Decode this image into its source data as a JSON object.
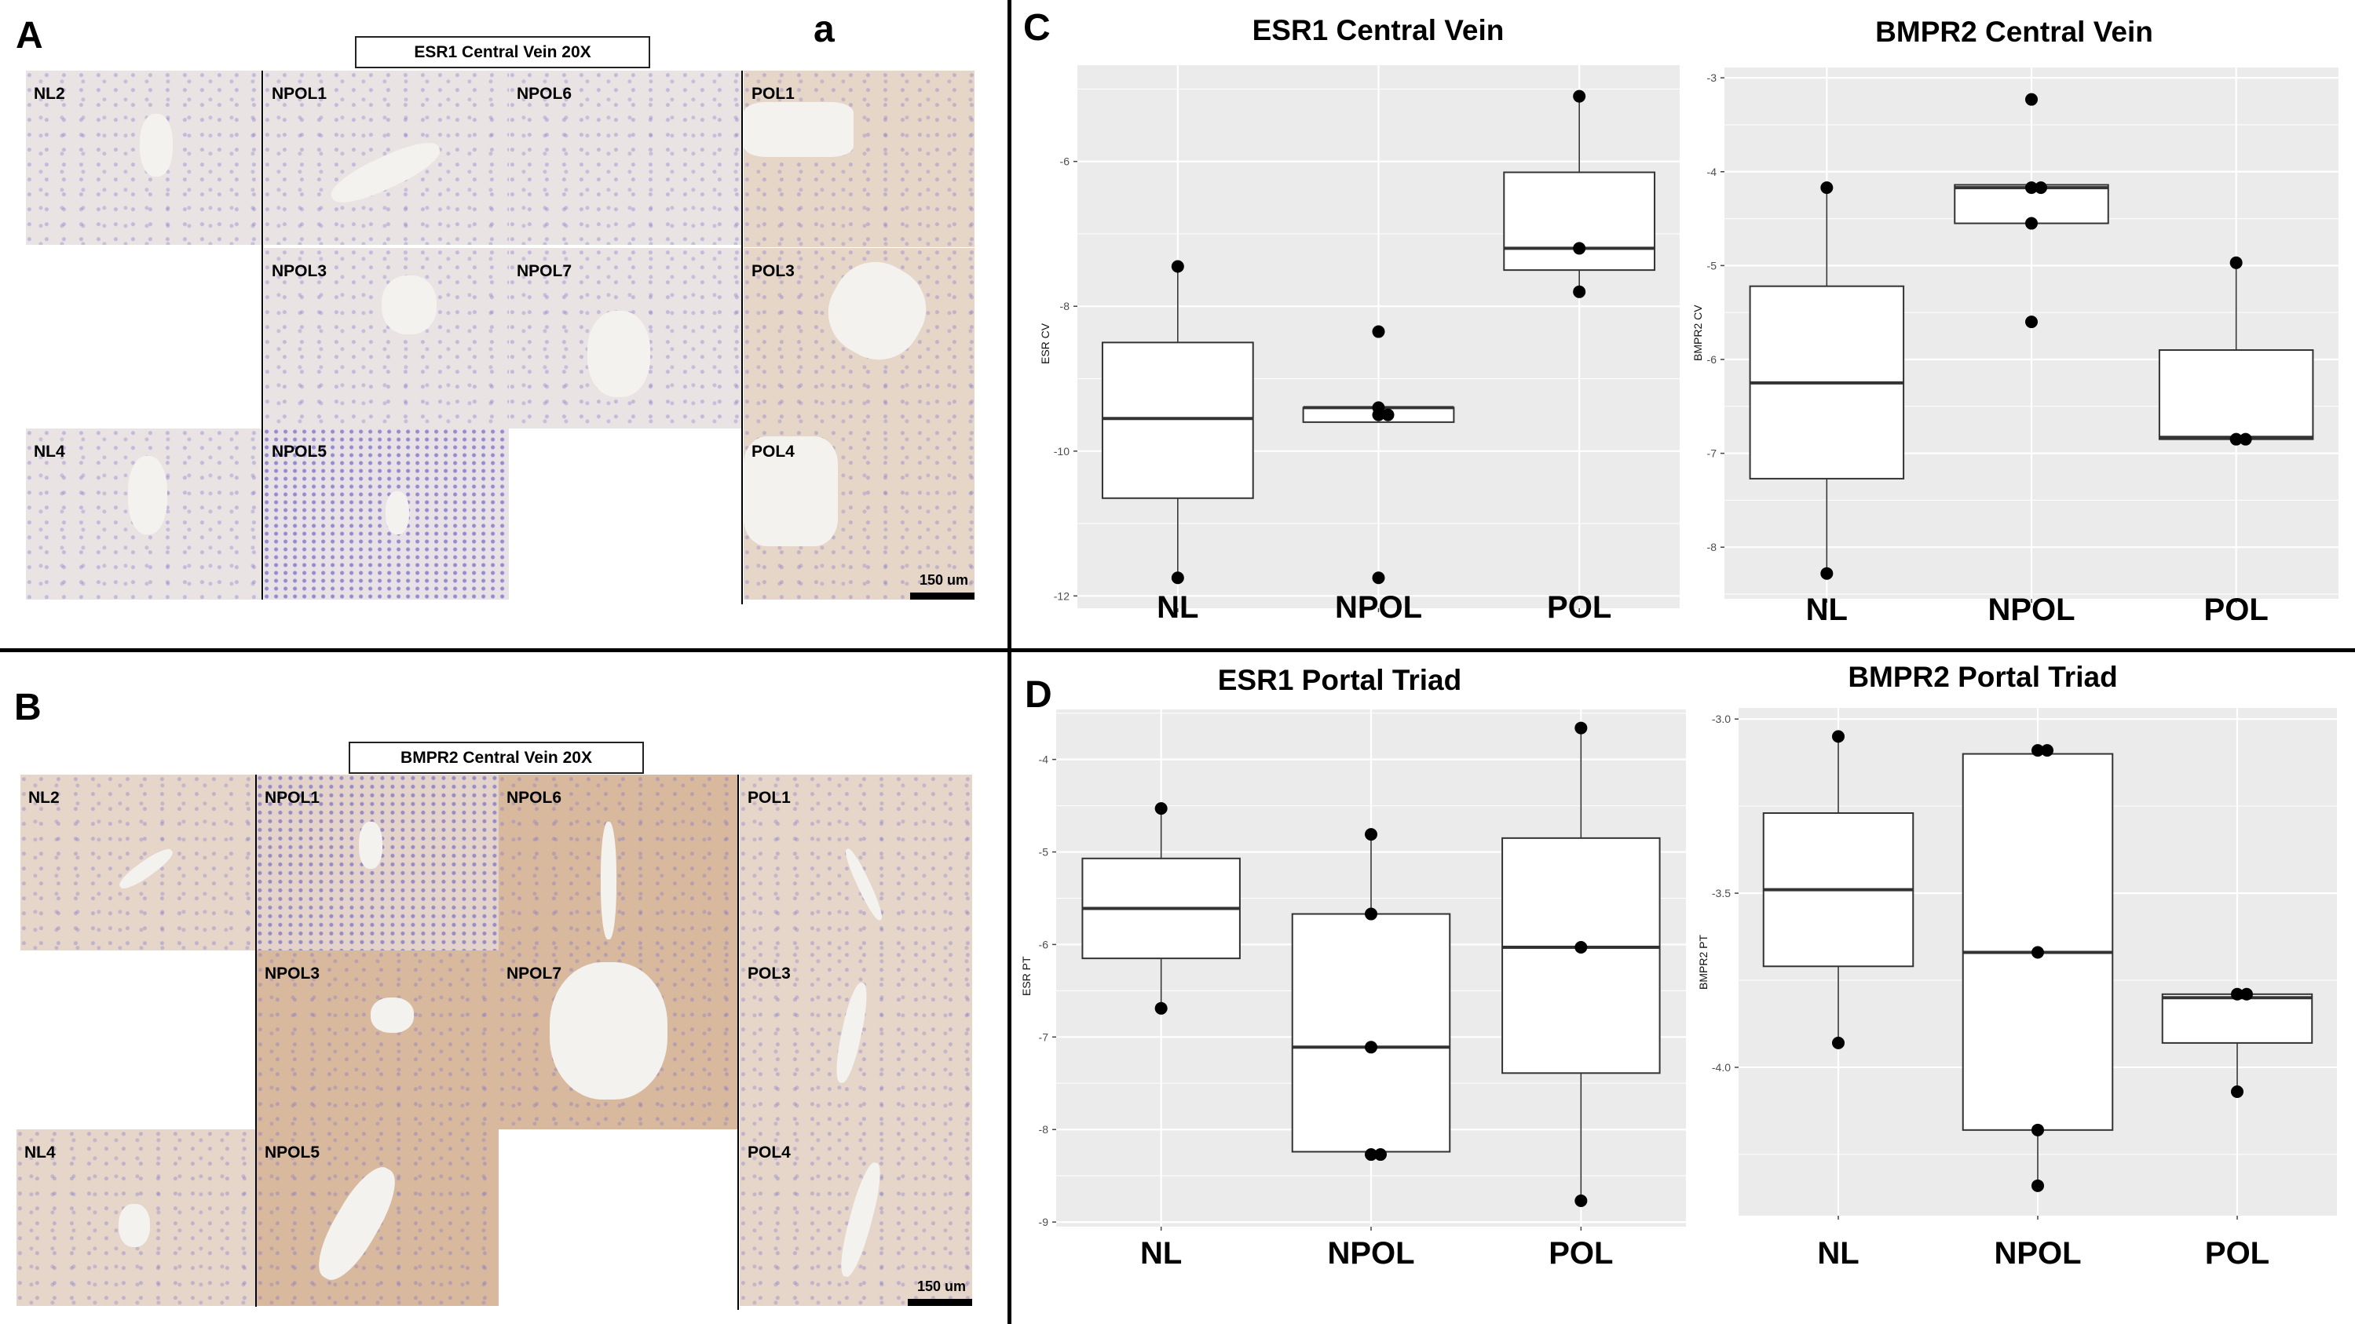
{
  "panels": {
    "A": {
      "letter": "A",
      "sub_letter": "a",
      "title": "ESR1 Central Vein 20X",
      "tiles": [
        {
          "label": "NL2"
        },
        {
          "label": "NPOL1"
        },
        {
          "label": "NPOL6"
        },
        {
          "label": "POL1"
        },
        {
          "label": "NPOL3"
        },
        {
          "label": "NPOL7"
        },
        {
          "label": "POL3"
        },
        {
          "label": "NL4"
        },
        {
          "label": "NPOL5"
        },
        {
          "label": "POL4"
        }
      ],
      "scale_bar": "150 um"
    },
    "B": {
      "letter": "B",
      "title": "BMPR2 Central Vein 20X",
      "tiles": [
        {
          "label": "NL2"
        },
        {
          "label": "NPOL1"
        },
        {
          "label": "NPOL6"
        },
        {
          "label": "POL1"
        },
        {
          "label": "NPOL3"
        },
        {
          "label": "NPOL7"
        },
        {
          "label": "POL3"
        },
        {
          "label": "NL4"
        },
        {
          "label": "NPOL5"
        },
        {
          "label": "POL4"
        }
      ],
      "scale_bar": "150 um"
    },
    "C": {
      "letter": "C"
    },
    "D": {
      "letter": "D"
    }
  },
  "colors": {
    "plot_bg": "#ebebeb",
    "grid": "#ffffff",
    "box_fill": "#ffffff",
    "box_line": "#333333",
    "point": "#000000"
  },
  "chart_data": [
    {
      "id": "esr1_cv",
      "type": "box",
      "title": "ESR1 Central Vein",
      "xlabel": "",
      "ylabel": "ESR CV",
      "categories": [
        "NL",
        "NPOL",
        "POL"
      ],
      "ylim": [
        -12.17,
        -4.67
      ],
      "yticks": [
        -12,
        -10,
        -8,
        -6
      ],
      "grid": true,
      "boxes": [
        {
          "q1": -10.65,
          "median": -9.55,
          "q3": -8.5,
          "whisker_low": -11.75,
          "whisker_high": -7.45
        },
        {
          "q1": -9.6,
          "median": -9.4,
          "q3": -9.4,
          "whisker_low": -9.6,
          "whisker_high": -9.4
        },
        {
          "q1": -7.5,
          "median": -7.2,
          "q3": -6.15,
          "whisker_low": -7.8,
          "whisker_high": -5.1
        }
      ],
      "points": [
        [
          -7.45,
          -11.75
        ],
        [
          -8.35,
          -9.4,
          -9.5,
          -9.5,
          -11.75
        ],
        [
          -5.1,
          -7.2,
          -7.8
        ]
      ]
    },
    {
      "id": "bmpr2_cv",
      "type": "box",
      "title": "BMPR2 Central Vein",
      "xlabel": "",
      "ylabel": "BMPR2 CV",
      "categories": [
        "NL",
        "NPOL",
        "POL"
      ],
      "ylim": [
        -8.55,
        -2.89
      ],
      "yticks": [
        -8,
        -7,
        -6,
        -5,
        -4,
        -3
      ],
      "grid": true,
      "boxes": [
        {
          "q1": -7.27,
          "median": -6.25,
          "q3": -5.22,
          "whisker_low": -8.28,
          "whisker_high": -4.17
        },
        {
          "q1": -4.55,
          "median": -4.17,
          "q3": -4.14,
          "whisker_low": -4.55,
          "whisker_high": -4.14
        },
        {
          "q1": -6.85,
          "median": -6.83,
          "q3": -5.9,
          "whisker_low": -6.85,
          "whisker_high": -4.97
        }
      ],
      "points": [
        [
          -4.17,
          -8.28
        ],
        [
          -3.23,
          -4.17,
          -4.17,
          -4.55,
          -5.6
        ],
        [
          -4.97,
          -6.85,
          -6.85
        ]
      ]
    },
    {
      "id": "esr1_pt",
      "type": "box",
      "title": "ESR1 Portal Triad",
      "xlabel": "",
      "ylabel": "ESR PT",
      "categories": [
        "NL",
        "NPOL",
        "POL"
      ],
      "ylim": [
        -9.05,
        -3.46
      ],
      "yticks": [
        -9,
        -8,
        -7,
        -6,
        -5,
        -4
      ],
      "grid": true,
      "boxes": [
        {
          "q1": -6.15,
          "median": -5.61,
          "q3": -5.07,
          "whisker_low": -6.69,
          "whisker_high": -4.53
        },
        {
          "q1": -8.24,
          "median": -7.11,
          "q3": -5.67,
          "whisker_low": -8.27,
          "whisker_high": -4.81
        },
        {
          "q1": -7.39,
          "median": -6.03,
          "q3": -4.85,
          "whisker_low": -8.77,
          "whisker_high": -3.66
        }
      ],
      "points": [
        [
          -4.53,
          -6.69
        ],
        [
          -4.81,
          -5.67,
          -7.11,
          -8.27,
          -8.27
        ],
        [
          -3.66,
          -6.03,
          -8.77
        ]
      ]
    },
    {
      "id": "bmpr2_pt",
      "type": "box",
      "title": "BMPR2 Portal Triad",
      "xlabel": "",
      "ylabel": "BMPR2 PT",
      "categories": [
        "NL",
        "NPOL",
        "POL"
      ],
      "ylim": [
        -4.426,
        -2.968
      ],
      "yticks": [
        -4.0,
        -3.5,
        -3.0
      ],
      "ytick_labels": [
        "-4.0",
        "-3.5",
        "-3.0"
      ],
      "grid": true,
      "boxes": [
        {
          "q1": -3.71,
          "median": -3.49,
          "q3": -3.27,
          "whisker_low": -3.93,
          "whisker_high": -3.05
        },
        {
          "q1": -4.18,
          "median": -3.67,
          "q3": -3.1,
          "whisker_low": -4.34,
          "whisker_high": -3.09
        },
        {
          "q1": -3.93,
          "median": -3.8,
          "q3": -3.79,
          "whisker_low": -4.07,
          "whisker_high": -3.79
        }
      ],
      "points": [
        [
          -3.05,
          -3.93
        ],
        [
          -3.09,
          -3.09,
          -3.67,
          -4.18,
          -4.34
        ],
        [
          -3.79,
          -3.79,
          -4.07
        ]
      ]
    }
  ]
}
